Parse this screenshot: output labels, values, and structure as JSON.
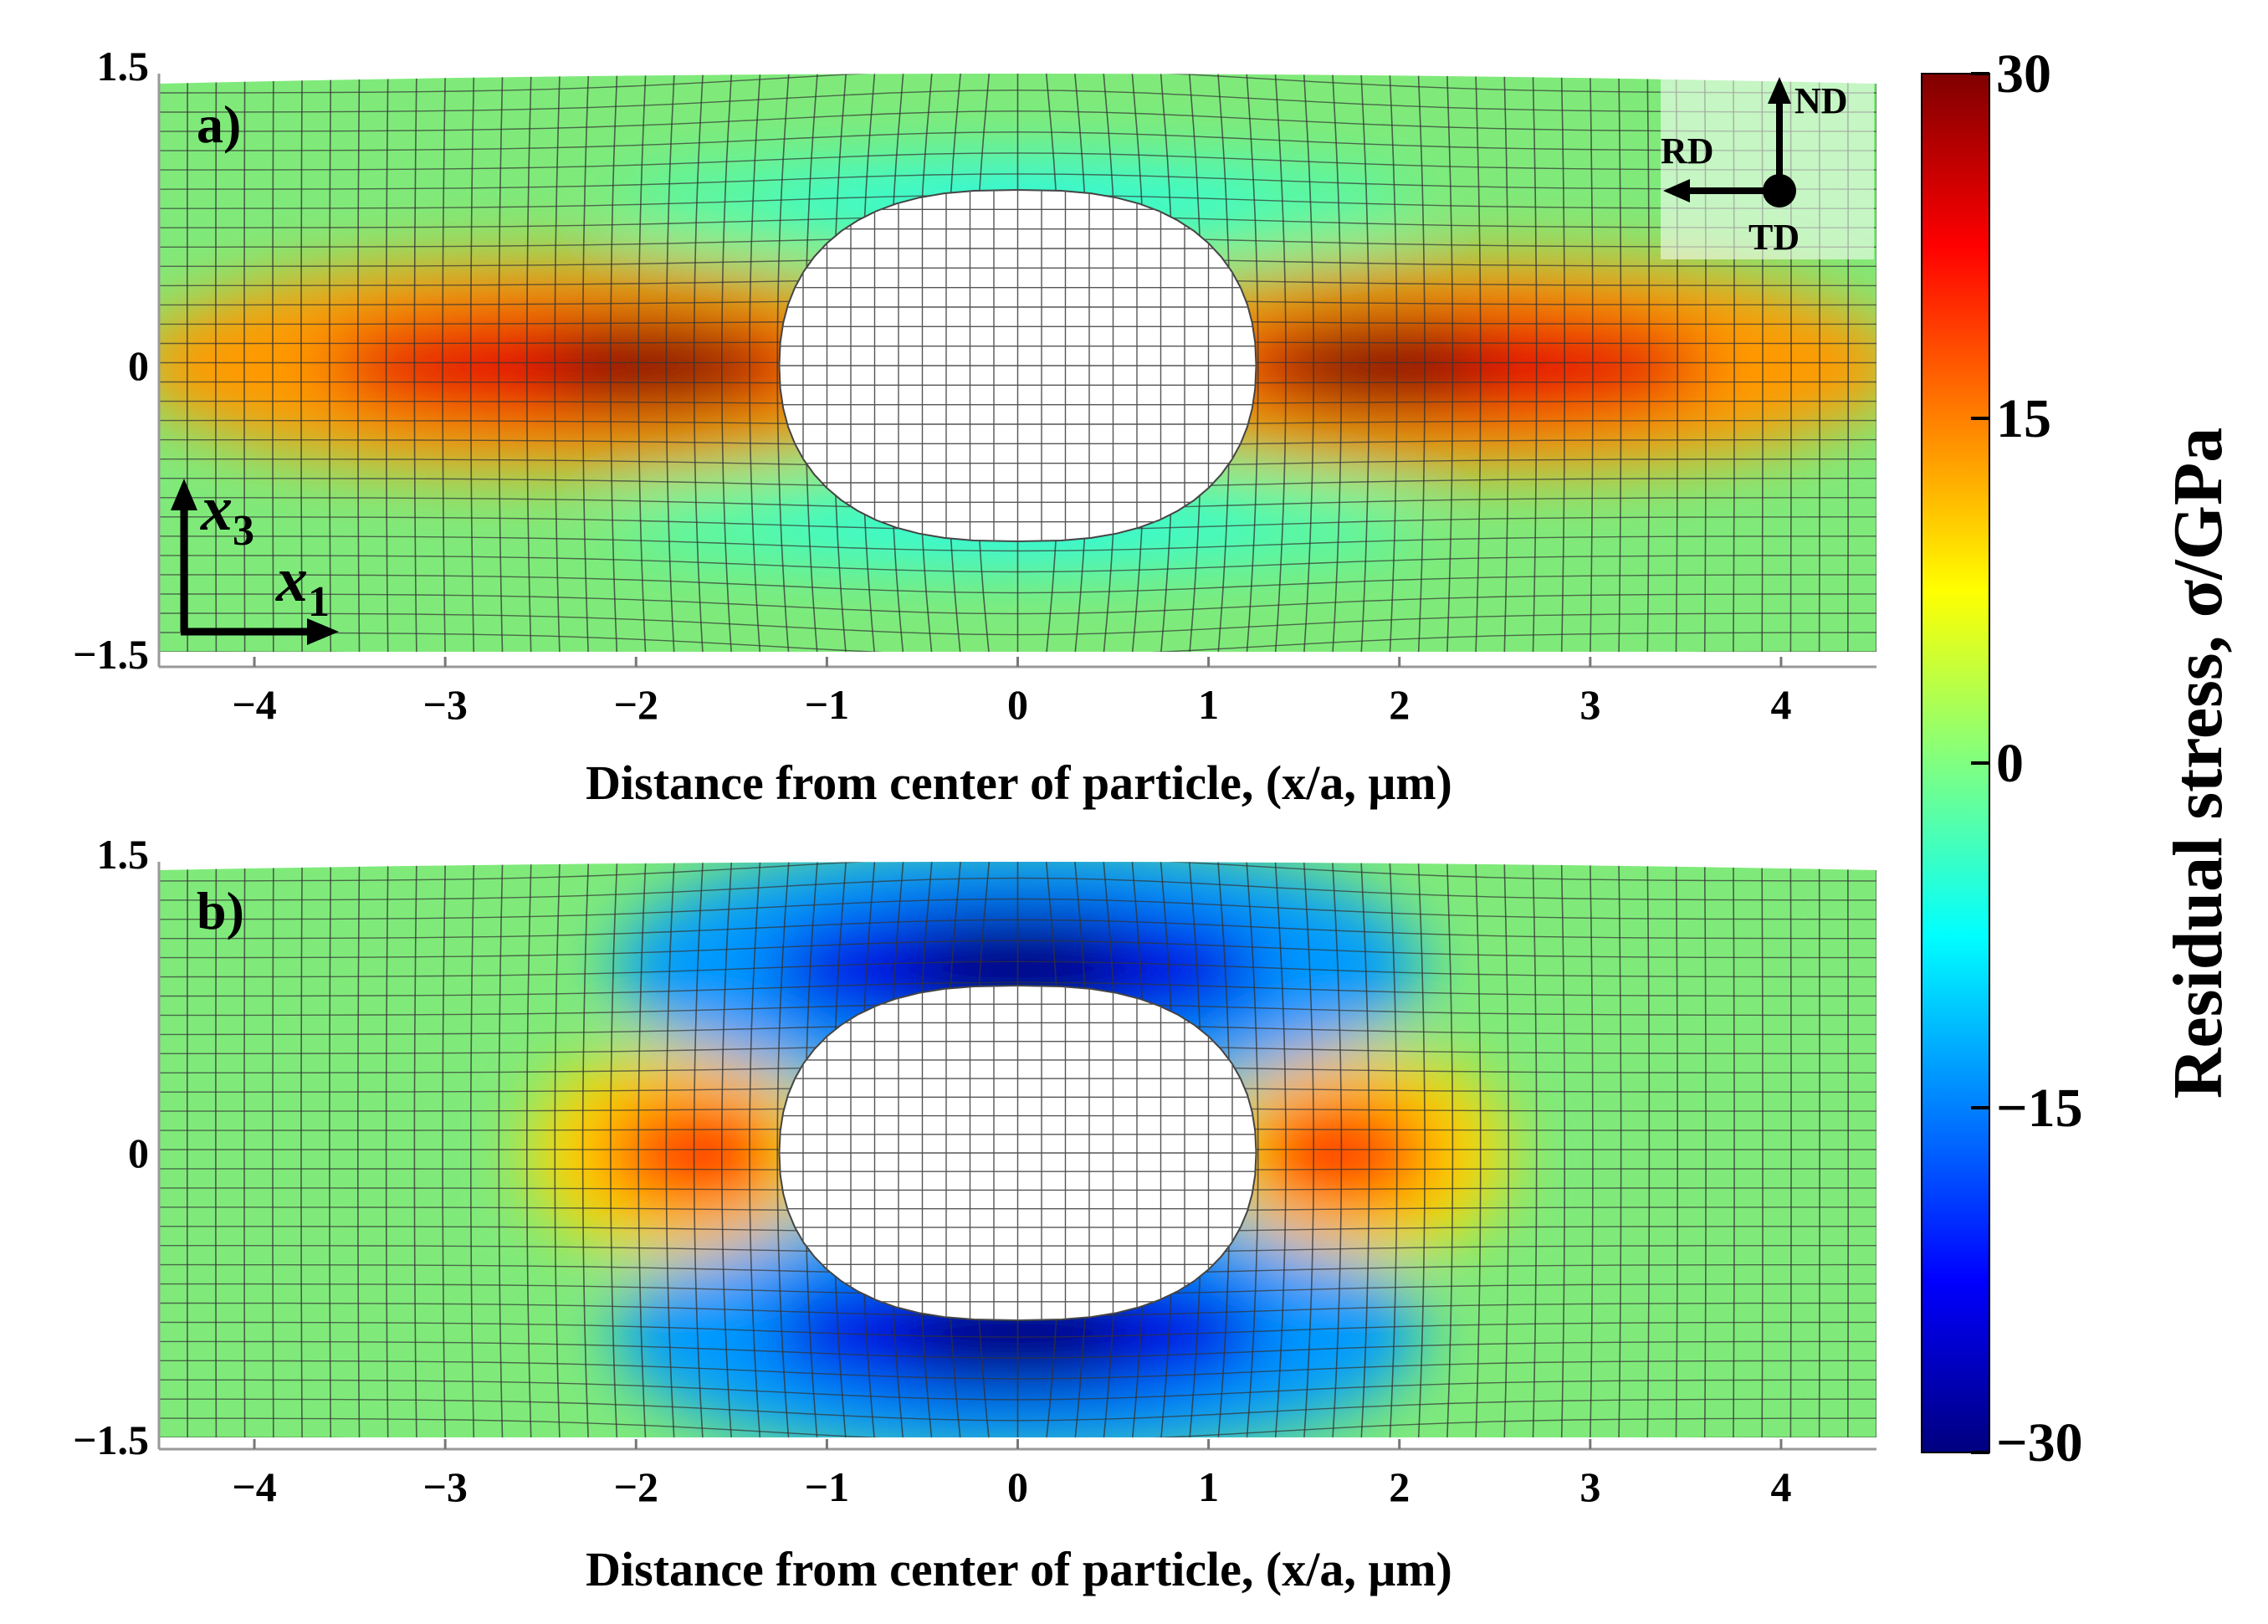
{
  "chart_data": [
    {
      "type": "heatmap",
      "panel_label": "a)",
      "xlabel": "Distance from center of particle, (x/a, μm)",
      "xticks": [
        -4,
        -3,
        -2,
        -1,
        0,
        1,
        2,
        3,
        4
      ],
      "yticks": [
        "1.5",
        "0",
        "−1.5"
      ],
      "xlim": [
        -4.5,
        4.5
      ],
      "ylim": [
        -1.5,
        1.5
      ],
      "field": "tensile lobes along x1 at the particle ends, max ~30 GPa near x/a = ±1.6",
      "peaks": [
        {
          "x": -1.6,
          "y": 0,
          "value": 30
        },
        {
          "x": 1.6,
          "y": 0,
          "value": 30
        },
        {
          "x": 0,
          "y": 0.85,
          "value": -8
        },
        {
          "x": 0,
          "y": -0.85,
          "value": -8
        }
      ],
      "orientation": {
        "nd": "ND",
        "rd": "RD",
        "td": "TD"
      },
      "axes_glyph": {
        "x1": "x",
        "x1_sub": "1",
        "x3": "x",
        "x3_sub": "3"
      }
    },
    {
      "type": "heatmap",
      "panel_label": "b)",
      "xlabel": "Distance from center of particle, (x/a, μm)",
      "xticks": [
        -4,
        -3,
        -2,
        -1,
        0,
        1,
        2,
        3,
        4
      ],
      "yticks": [
        "1.5",
        "0",
        "−1.5"
      ],
      "xlim": [
        -4.5,
        4.5
      ],
      "ylim": [
        -1.5,
        1.5
      ],
      "field": "compressive caps above and below the particle (~-30 GPa), small tensile spots at x/a = ±1.4",
      "peaks": [
        {
          "x": 0,
          "y": 0.95,
          "value": -30
        },
        {
          "x": 0,
          "y": -0.95,
          "value": -30
        },
        {
          "x": -1.45,
          "y": 0,
          "value": 22
        },
        {
          "x": 1.45,
          "y": 0,
          "value": 22
        }
      ]
    }
  ],
  "colorbar": {
    "title": "Residual stress, σ/GPa",
    "min": -30,
    "max": 30,
    "ticks": [
      {
        "value": 30,
        "label": "30"
      },
      {
        "value": 15,
        "label": "15"
      },
      {
        "value": 0,
        "label": "0"
      },
      {
        "value": -15,
        "label": "−15"
      },
      {
        "value": -30,
        "label": "−30"
      }
    ],
    "colormap": "jet",
    "stops": [
      "#7f0000",
      "#ff0000",
      "#ff8000",
      "#ffff00",
      "#80ff80",
      "#00ffff",
      "#0080ff",
      "#0000ff",
      "#00007f"
    ]
  },
  "colors": {
    "particle": "#ffffff",
    "mesh": "#333333",
    "background_field": "#7fea7a"
  }
}
